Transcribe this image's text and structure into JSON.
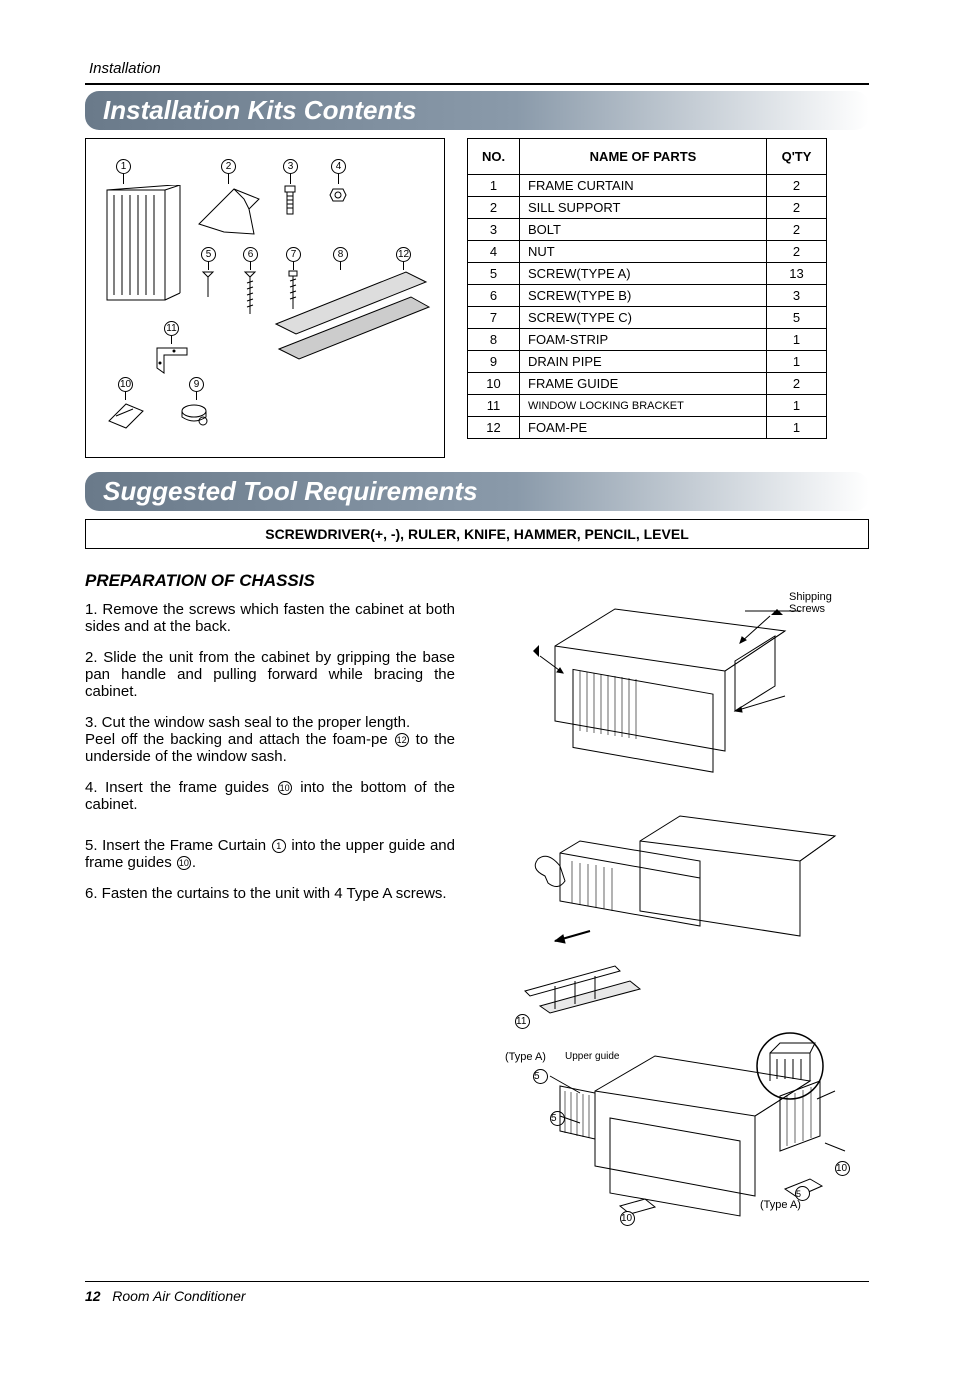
{
  "page": {
    "section_label": "Installation",
    "heading_kits": "Installation Kits Contents",
    "heading_tools": "Suggested Tool Requirements",
    "tools_list": "SCREWDRIVER(+, -), RULER, KNIFE, HAMMER, PENCIL, LEVEL",
    "prep_heading": "PREPARATION OF CHASSIS",
    "footer_page": "12",
    "footer_title": "Room Air Conditioner"
  },
  "parts_table": {
    "headers": {
      "no": "NO.",
      "name": "NAME OF PARTS",
      "qty": "Q'TY"
    },
    "rows": [
      {
        "no": "1",
        "name": "FRAME CURTAIN",
        "qty": "2"
      },
      {
        "no": "2",
        "name": "SILL SUPPORT",
        "qty": "2"
      },
      {
        "no": "3",
        "name": "BOLT",
        "qty": "2"
      },
      {
        "no": "4",
        "name": "NUT",
        "qty": "2"
      },
      {
        "no": "5",
        "name": "SCREW(TYPE A)",
        "qty": "13"
      },
      {
        "no": "6",
        "name": "SCREW(TYPE B)",
        "qty": "3"
      },
      {
        "no": "7",
        "name": "SCREW(TYPE C)",
        "qty": "5"
      },
      {
        "no": "8",
        "name": "FOAM-STRIP",
        "qty": "1"
      },
      {
        "no": "9",
        "name": "DRAIN PIPE",
        "qty": "1"
      },
      {
        "no": "10",
        "name": "FRAME GUIDE",
        "qty": "2"
      },
      {
        "no": "11",
        "name": "WINDOW LOCKING BRACKET",
        "qty": "1"
      },
      {
        "no": "12",
        "name": "FOAM-PE",
        "qty": "1"
      }
    ]
  },
  "diagram_items": {
    "1": "1",
    "2": "2",
    "3": "3",
    "4": "4",
    "5": "5",
    "6": "6",
    "7": "7",
    "8": "8",
    "9": "9",
    "10": "10",
    "11": "11",
    "12": "12"
  },
  "steps": {
    "s1": "1. Remove the screws which fasten the cabinet at both sides and at the back.",
    "s2": "2. Slide the unit from the cabinet by gripping the base pan handle and pulling forward while bracing the cabinet.",
    "s3a": "3. Cut the window sash seal to the proper length.",
    "s3b_pre": "Peel off the backing and attach the foam-pe",
    "s3b_post": "to the underside of the window sash.",
    "s4_pre": "4. Insert the frame guides",
    "s4_post": "into the bottom of the cabinet.",
    "s5_pre": "5. Insert the Frame Curtain",
    "s5_mid": "into the upper guide and frame guides",
    "s5_post": ".",
    "s6": "6. Fasten the curtains to the unit with 4 Type A screws."
  },
  "figure_labels": {
    "shipping": "Shipping Screws",
    "type_a": "(Type A)",
    "upper_guide": "Upper guide",
    "c5": "5",
    "c10": "10",
    "c11": "11"
  },
  "colors": {
    "bar_from": "#6a7a8a",
    "bar_to": "#ffffff"
  }
}
